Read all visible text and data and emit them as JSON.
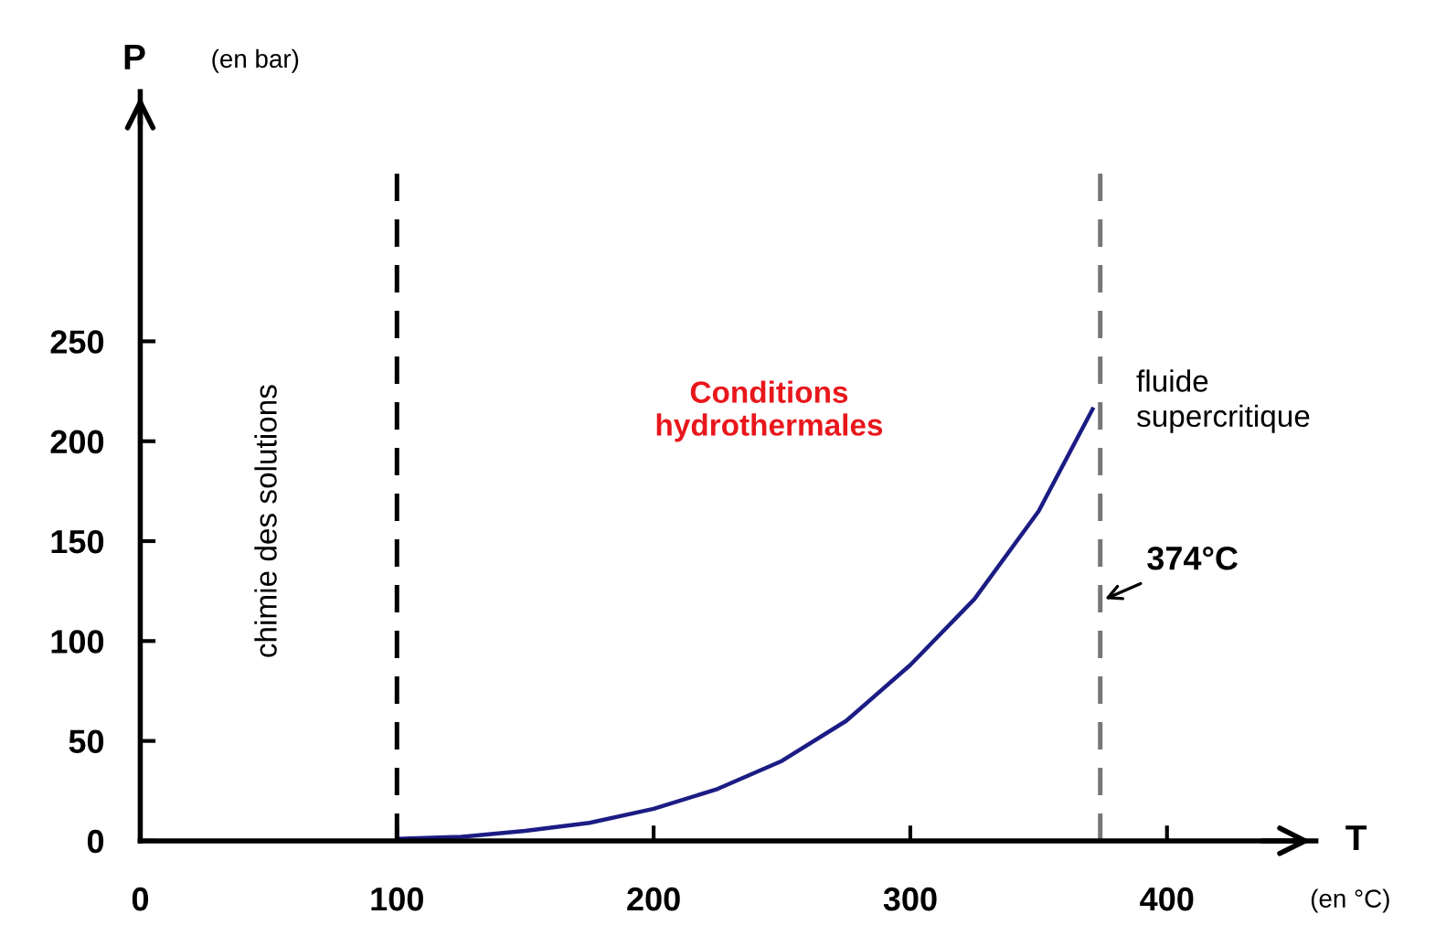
{
  "chart_data": {
    "type": "line",
    "xlabel": "T",
    "ylabel": "P",
    "x": [
      100,
      125,
      150,
      175,
      200,
      225,
      250,
      275,
      300,
      325,
      350,
      371
    ],
    "series": [
      {
        "color": "#1c1c84",
        "values": [
          1,
          2,
          5,
          9,
          16,
          26,
          40,
          60,
          88,
          121,
          165,
          216
        ]
      }
    ],
    "xlim": [
      0,
      458
    ],
    "ylim": [
      0,
      375
    ],
    "xticks": [
      0,
      100,
      200,
      300,
      400
    ],
    "yticks": [
      0,
      50,
      100,
      150,
      200,
      250
    ],
    "ref_lines": [
      {
        "axis": "x",
        "value": 100,
        "color": "#000000",
        "line_style": "dashed"
      },
      {
        "axis": "x",
        "value": 374,
        "label": "374°C",
        "color": "#777777",
        "line_style": "dashed"
      }
    ],
    "annotations": [
      "(en bar)",
      "(en °C)",
      "chimie des solutions",
      "Conditions\nhydrothermales",
      "fluide\nsupercritique"
    ],
    "grid": false,
    "marker": "none",
    "line_style": "solid"
  }
}
